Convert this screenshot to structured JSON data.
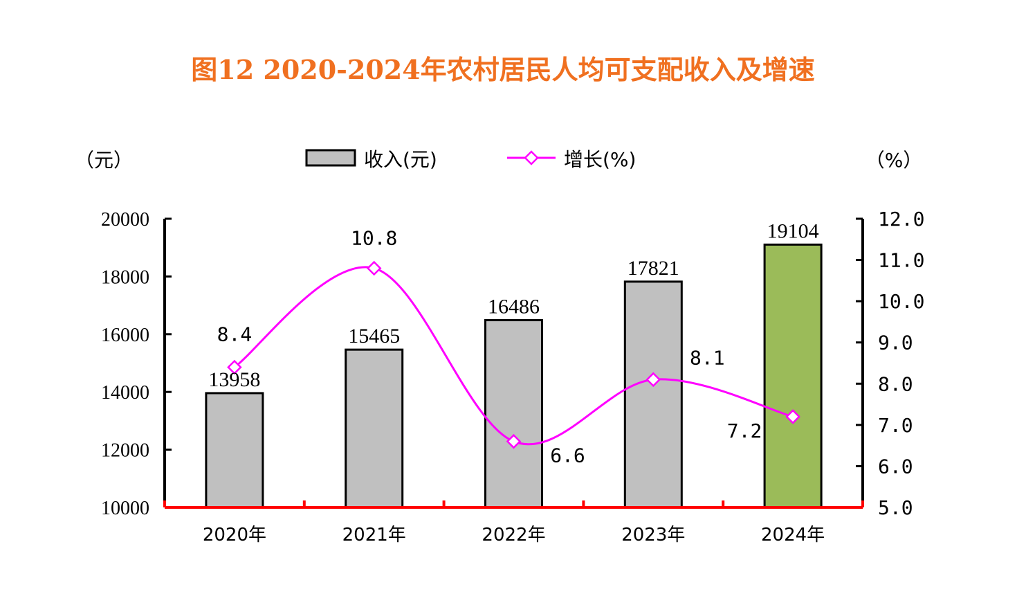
{
  "chart_data": {
    "type": "bar",
    "title": "图12 2020-2024年农村居民人均可支配收入及增速",
    "left_unit": "（元）",
    "right_unit": "（%）",
    "categories": [
      "2020年",
      "2021年",
      "2022年",
      "2023年",
      "2024年"
    ],
    "series": [
      {
        "name": "收入(元)",
        "type": "bar",
        "axis": "left",
        "values": [
          13958,
          15465,
          16486,
          17821,
          19104
        ],
        "labels": [
          "13958",
          "15465",
          "16486",
          "17821",
          "19104"
        ],
        "colors": [
          "#c0c0c0",
          "#c0c0c0",
          "#c0c0c0",
          "#c0c0c0",
          "#9bbb59"
        ]
      },
      {
        "name": "增长(%)",
        "type": "line",
        "axis": "right",
        "values": [
          8.4,
          10.8,
          6.6,
          8.1,
          7.2
        ],
        "labels": [
          "8.4",
          "10.8",
          "6.6",
          "8.1",
          "7.2"
        ],
        "color": "#ff00ff"
      }
    ],
    "y_left": {
      "lim": [
        10000,
        20000
      ],
      "ticks": [
        "20000",
        "18000",
        "16000",
        "14000",
        "12000",
        "10000"
      ]
    },
    "y_right": {
      "lim": [
        5.0,
        12.0
      ],
      "ticks": [
        "12.0",
        "11.0",
        "10.0",
        "9.0",
        "8.0",
        "7.0",
        "6.0",
        "5.0"
      ]
    },
    "axis_color": "#ff0000",
    "legend": "top-center",
    "grid": false
  }
}
